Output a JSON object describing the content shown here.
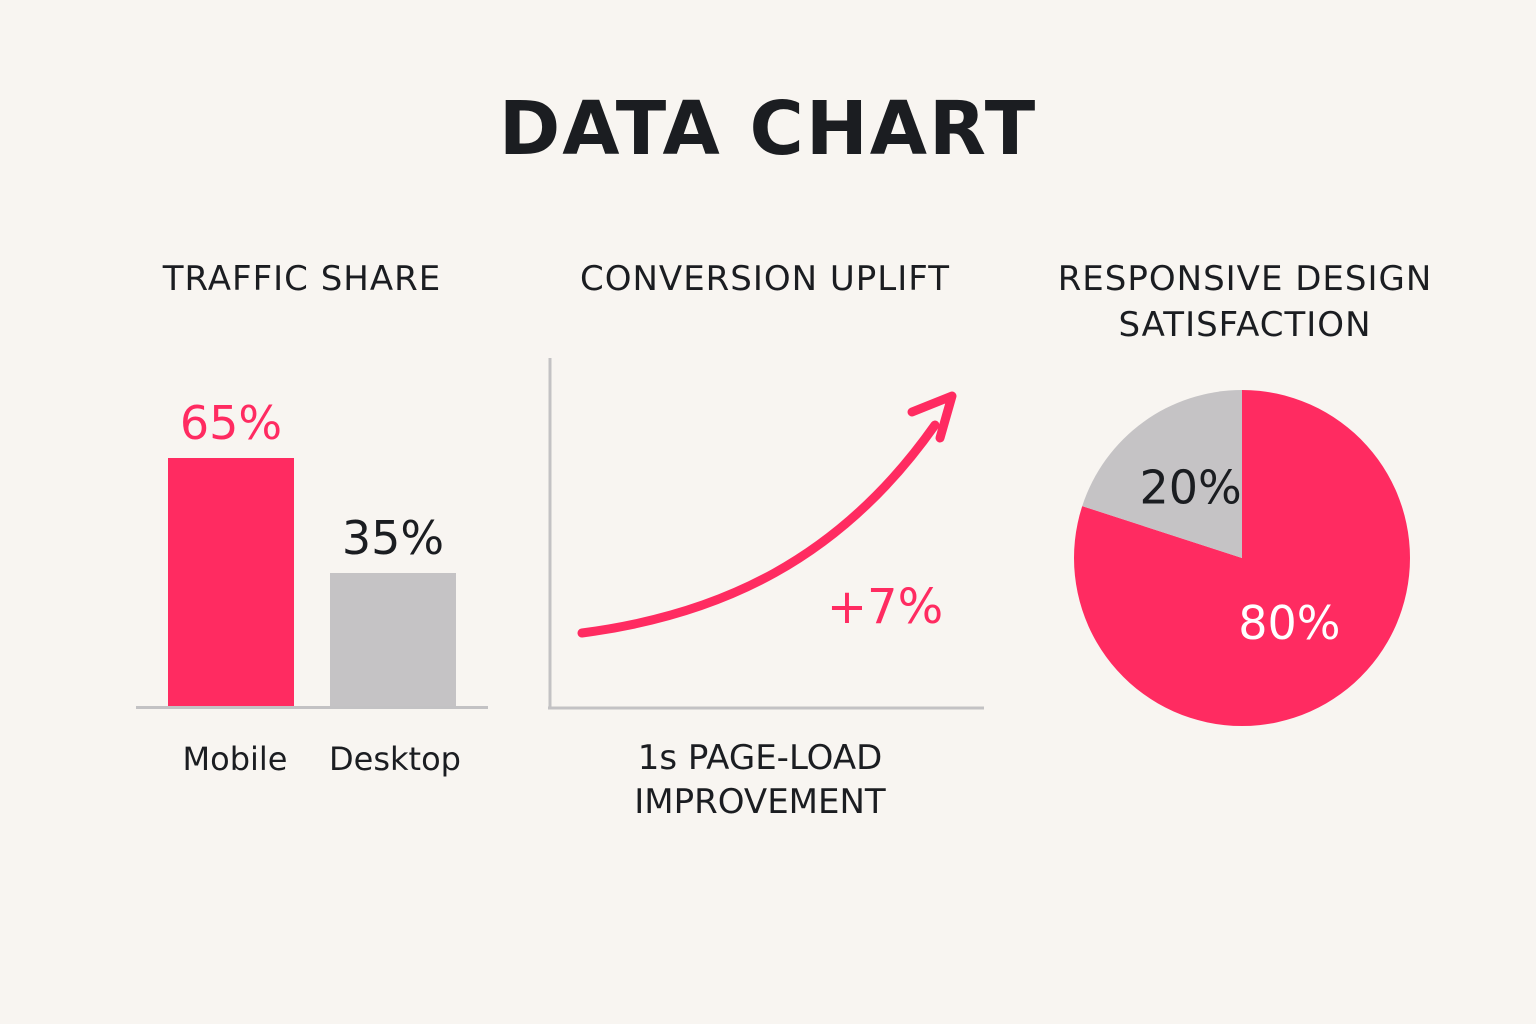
{
  "title": "DATA CHART",
  "colors": {
    "accent": "#ff2b61",
    "neutral": "#c5c3c5",
    "axis": "#c3c2c4",
    "text": "#1b1d21",
    "background": "#f8f5f1"
  },
  "chart_data": [
    {
      "type": "bar",
      "title": "TRAFFIC SHARE",
      "categories": [
        "Mobile",
        "Desktop"
      ],
      "values": [
        65,
        35
      ],
      "data_labels": [
        "65%",
        "35%"
      ],
      "ylim": [
        0,
        100
      ],
      "bar_colors": [
        "#ff2b61",
        "#c5c3c5"
      ],
      "grid": false
    },
    {
      "type": "line",
      "title": "CONVERSION UPLIFT",
      "xlabel_lines": [
        "1s PAGE-LOAD",
        "IMPROVEMENT"
      ],
      "annotation": "+7%",
      "color": "#ff2b61",
      "grid": false
    },
    {
      "type": "pie",
      "title_lines": [
        "RESPONSIVE DESIGN",
        "SATISFACTION"
      ],
      "slices": [
        {
          "label": "80%",
          "value": 80,
          "color": "#ff2b61"
        },
        {
          "label": "20%",
          "value": 20,
          "color": "#c5c3c5"
        }
      ]
    }
  ]
}
